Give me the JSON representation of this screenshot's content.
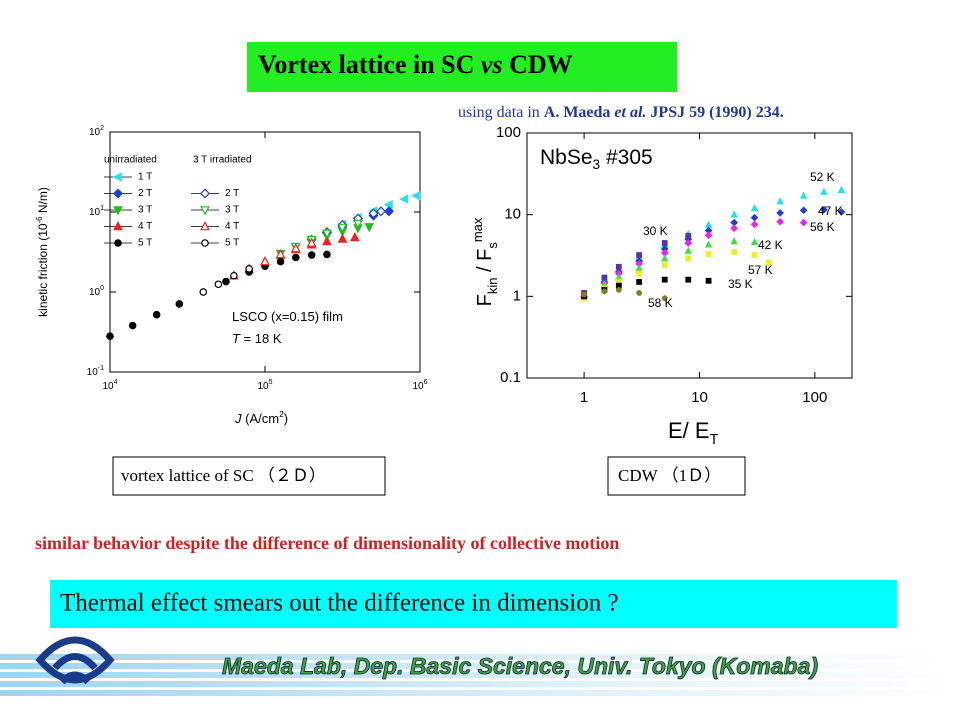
{
  "slide": {
    "title_parts": [
      {
        "text": "Vortex lattice in SC "
      },
      {
        "text": "vs",
        "italic": true
      },
      {
        "text": " CDW"
      }
    ],
    "source_parts": [
      {
        "text": "using data in "
      },
      {
        "text": "A. Maeda ",
        "bold": true
      },
      {
        "text": "et al.",
        "bold": true,
        "italic": true
      },
      {
        "text": " JPSJ 59 (1990) 234.",
        "bold": true
      }
    ],
    "caption_left": "vortex lattice of SC （２Ｄ）",
    "caption_right": "CDW （1Ｄ）",
    "remark": "similar behavior despite the difference of dimensionality of collective motion",
    "conclusion": "Thermal effect smears out the difference in dimension ?",
    "footer": "Maeda Lab, Dep. Basic Science, Univ. Tokyo (Komaba)"
  },
  "chart_data": [
    {
      "type": "scatter",
      "log_x": true,
      "log_y": true,
      "xlabel_parts": [
        {
          "text": "J",
          "italic": true
        },
        {
          "text": "  (A/cm"
        },
        {
          "text": "2",
          "sup": true
        },
        {
          "text": ")"
        }
      ],
      "ylabel_parts": [
        {
          "text": "kinetic friction (10"
        },
        {
          "text": "-6",
          "sup": true
        },
        {
          "text": " N/m)"
        }
      ],
      "annotations": [
        [
          {
            "text": "LSCO (x=0.15) film"
          }
        ],
        [
          {
            "text": "T",
            "italic": true
          },
          {
            "text": "  = 18 K"
          }
        ]
      ],
      "legend_headers": [
        "unirradiated",
        "3 T irradiated"
      ],
      "xlim": [
        10000,
        1000000
      ],
      "xticks": [
        {
          "value": 10000,
          "label": "10",
          "exp": "4"
        },
        {
          "value": 100000,
          "label": "10",
          "exp": "5"
        },
        {
          "value": 1000000,
          "label": "10",
          "exp": "6"
        }
      ],
      "ylim": [
        0.1,
        100
      ],
      "yticks": [
        {
          "value": 0.1,
          "label": "10",
          "exp": "-1"
        },
        {
          "value": 1,
          "label": "10",
          "exp": "0"
        },
        {
          "value": 10,
          "label": "10",
          "exp": "1"
        },
        {
          "value": 100,
          "label": "10",
          "exp": "2"
        }
      ],
      "series": [
        {
          "name": "1 T",
          "group": 0,
          "color": "#33ddee",
          "marker": "triangle-left",
          "filled": true,
          "x": [
            316000,
            398000,
            501000,
            631000,
            794000,
            950000
          ],
          "values": [
            7,
            8.5,
            10.3,
            12.3,
            14.5,
            16
          ]
        },
        {
          "name": "2 T",
          "group": 0,
          "color": "#1f3fd0",
          "marker": "diamond",
          "filled": true,
          "x": [
            200000,
            251000,
            316000,
            398000,
            501000,
            631000
          ],
          "values": [
            4.5,
            5.5,
            6.6,
            7.8,
            9.0,
            10.2
          ]
        },
        {
          "name": "3 T",
          "group": 0,
          "color": "#22bb22",
          "marker": "triangle-down",
          "filled": true,
          "x": [
            126000,
            158000,
            200000,
            251000,
            316000,
            398000,
            470000
          ],
          "values": [
            3.0,
            3.6,
            4.3,
            5.0,
            5.7,
            6.3,
            6.5
          ]
        },
        {
          "name": "4 T",
          "group": 0,
          "color": "#ee2222",
          "marker": "triangle-up",
          "filled": true,
          "x": [
            63000,
            79000,
            100000,
            126000,
            158000,
            200000,
            251000,
            316000,
            380000
          ],
          "values": [
            1.6,
            1.95,
            2.4,
            2.9,
            3.4,
            3.9,
            4.3,
            4.6,
            4.8
          ]
        },
        {
          "name": "5 T",
          "group": 0,
          "color": "#000000",
          "marker": "circle",
          "filled": true,
          "x": [
            10000,
            14000,
            20000,
            28000,
            40000,
            56000,
            79000,
            100000,
            126000,
            158000,
            200000,
            251000
          ],
          "values": [
            0.28,
            0.38,
            0.52,
            0.71,
            1.0,
            1.35,
            1.78,
            2.1,
            2.4,
            2.7,
            2.9,
            2.95
          ]
        },
        {
          "name": "2 T",
          "group": 1,
          "color": "#1f3fd0",
          "marker": "diamond",
          "filled": false,
          "x": [
            251000,
            316000,
            398000,
            501000,
            560000
          ],
          "values": [
            5.6,
            6.9,
            8.3,
            9.6,
            10.2
          ]
        },
        {
          "name": "3 T",
          "group": 1,
          "color": "#22bb22",
          "marker": "triangle-down",
          "filled": false,
          "x": [
            158000,
            200000,
            251000,
            316000,
            398000
          ],
          "values": [
            3.7,
            4.5,
            5.4,
            6.4,
            7.2
          ]
        },
        {
          "name": "4 T",
          "group": 1,
          "color": "#ee2222",
          "marker": "triangle-up",
          "filled": false,
          "x": [
            100000,
            126000,
            158000,
            200000
          ],
          "values": [
            2.4,
            2.95,
            3.5,
            4.1
          ]
        },
        {
          "name": "5 T",
          "group": 1,
          "color": "#000000",
          "marker": "circle",
          "filled": false,
          "x": [
            40000,
            50000,
            63000,
            79000
          ],
          "values": [
            1.0,
            1.25,
            1.6,
            1.95
          ]
        }
      ]
    },
    {
      "type": "scatter",
      "log_x": true,
      "log_y": true,
      "title_parts": [
        {
          "text": "NbSe"
        },
        {
          "text": "3",
          "sub": true
        },
        {
          "text": " #305"
        }
      ],
      "xlabel_parts": [
        {
          "text": "E/ E"
        },
        {
          "text": "T",
          "sub": true
        }
      ],
      "ylabel_parts": [
        {
          "text": "F"
        },
        {
          "text": "kin",
          "sub": true
        },
        {
          "text": " / F"
        },
        {
          "text": "s",
          "sub": true
        },
        {
          "text": "max",
          "sup": true
        }
      ],
      "xlim": [
        0.32,
        210
      ],
      "xticks": [
        1,
        10,
        100
      ],
      "ylim": [
        0.1,
        100
      ],
      "yticks": [
        0.1,
        1,
        10,
        100
      ],
      "series": [
        {
          "name": "52 K",
          "color": "#22e0f0",
          "marker": "triangle-up",
          "filled": true,
          "x": [
            1,
            1.5,
            2,
            3,
            5,
            8,
            12,
            20,
            30,
            50,
            80,
            120,
            170
          ],
          "values": [
            1.05,
            1.6,
            2.1,
            3.0,
            4.3,
            5.8,
            7.5,
            10,
            12,
            14.5,
            17,
            19,
            20
          ]
        },
        {
          "name": "47 K",
          "color": "#1f3fd0",
          "marker": "diamond",
          "filled": true,
          "x": [
            1,
            1.5,
            2,
            3,
            5,
            8,
            12,
            20,
            30,
            50,
            80,
            120,
            170
          ],
          "values": [
            1.0,
            1.5,
            2.0,
            2.7,
            3.8,
            5.0,
            6.4,
            8.0,
            9.2,
            10.5,
            11.3,
            11.5,
            10.8
          ]
        },
        {
          "name": "56 K",
          "color": "#ee22ee",
          "marker": "diamond",
          "filled": true,
          "x": [
            1,
            1.5,
            2,
            3,
            5,
            8,
            12,
            20,
            30,
            50,
            80
          ],
          "values": [
            1.0,
            1.45,
            1.9,
            2.5,
            3.4,
            4.5,
            5.6,
            6.8,
            7.6,
            8.2,
            8.0
          ]
        },
        {
          "name": "42 K",
          "color": "#44dd44",
          "marker": "triangle-up",
          "filled": true,
          "x": [
            1,
            1.5,
            2,
            3,
            5,
            8,
            12,
            20,
            30
          ],
          "values": [
            1.0,
            1.4,
            1.7,
            2.2,
            2.9,
            3.6,
            4.3,
            4.7,
            4.6
          ]
        },
        {
          "name": "30 K",
          "color": "#5533aa",
          "marker": "square",
          "filled": true,
          "x": [
            1,
            1.5,
            2,
            3,
            5,
            8
          ],
          "values": [
            1.1,
            1.7,
            2.3,
            3.2,
            4.5,
            5.5
          ]
        },
        {
          "name": "57 K",
          "color": "#eeee22",
          "marker": "square",
          "filled": true,
          "x": [
            1,
            1.5,
            2,
            3,
            5,
            8,
            12,
            20,
            30,
            40
          ],
          "values": [
            0.95,
            1.25,
            1.5,
            1.9,
            2.4,
            2.9,
            3.3,
            3.5,
            3.2,
            2.6
          ]
        },
        {
          "name": "35 K",
          "color": "#000000",
          "marker": "square",
          "filled": true,
          "x": [
            1,
            1.5,
            2,
            3,
            5,
            8,
            12
          ],
          "values": [
            1.0,
            1.2,
            1.35,
            1.5,
            1.6,
            1.6,
            1.55
          ]
        },
        {
          "name": "58 K",
          "color": "#808020",
          "marker": "circle",
          "filled": true,
          "x": [
            1,
            1.5,
            2,
            3,
            5
          ],
          "values": [
            1.05,
            1.15,
            1.2,
            1.1,
            0.95
          ]
        }
      ]
    }
  ]
}
